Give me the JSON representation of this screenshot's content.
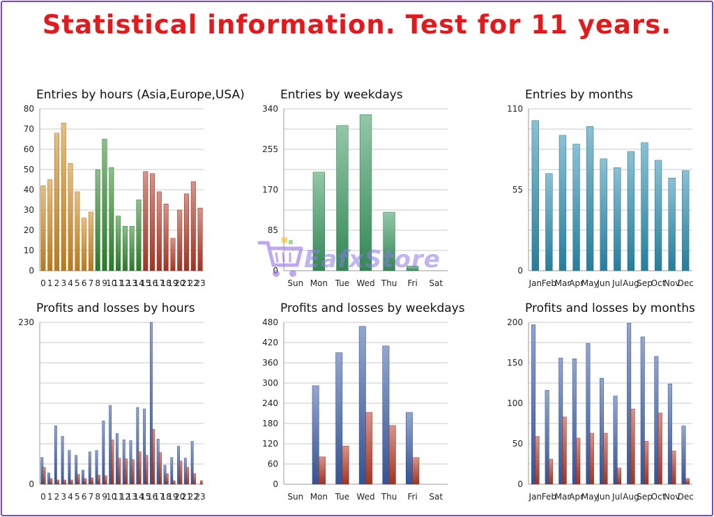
{
  "page": {
    "title": "Statistical information. Test for 11 years.",
    "title_color": "#e3191c"
  },
  "watermark": {
    "text": "EafxStore"
  },
  "chart_data": [
    {
      "id": "c1",
      "type": "bar",
      "title": "Entries by hours (Asia,Europe,USA)",
      "categories": [
        "0",
        "1",
        "2",
        "3",
        "4",
        "5",
        "6",
        "7",
        "8",
        "9",
        "10",
        "11",
        "12",
        "13",
        "14",
        "15",
        "16",
        "17",
        "18",
        "19",
        "20",
        "21",
        "22",
        "23"
      ],
      "series": [
        {
          "values": [
            42,
            45,
            68,
            73,
            53,
            39,
            26,
            29,
            50,
            65,
            51,
            27,
            22,
            22,
            35,
            49,
            48,
            39,
            33,
            16,
            30,
            38,
            44,
            31
          ]
        }
      ],
      "bar_colors": [
        "#d38a1c",
        "#d38a1c",
        "#d38a1c",
        "#d38a1c",
        "#d38a1c",
        "#d38a1c",
        "#d38a1c",
        "#d38a1c",
        "#2e8b2e",
        "#2e8b2e",
        "#2e8b2e",
        "#2e8b2e",
        "#2e8b2e",
        "#2e8b2e",
        "#2e8b2e",
        "#b83a26",
        "#b83a26",
        "#b83a26",
        "#b83a26",
        "#b83a26",
        "#b83a26",
        "#b83a26",
        "#b83a26",
        "#b83a26"
      ],
      "ylim": [
        0,
        80
      ],
      "yticks": [
        "0",
        "10",
        "20",
        "30",
        "40",
        "50",
        "60",
        "70",
        "80"
      ],
      "grid": true
    },
    {
      "id": "c2",
      "type": "bar",
      "title": "Entries by weekdays",
      "categories": [
        "Sun",
        "Mon",
        "Tue",
        "Wed",
        "Thu",
        "Fri",
        "Sat"
      ],
      "series": [
        {
          "values": [
            0,
            207,
            305,
            328,
            123,
            10,
            0
          ]
        }
      ],
      "bar_colors": [
        "#3a9a60"
      ],
      "ylim": [
        0,
        340
      ],
      "yticks": [
        "0",
        "85",
        "170",
        "255",
        "340"
      ],
      "grid": true
    },
    {
      "id": "c3",
      "type": "bar",
      "title": "Entries by months",
      "categories": [
        "Jan",
        "Feb",
        "Mar",
        "Apr",
        "May",
        "Jun",
        "Jul",
        "Aug",
        "Sep",
        "Oct",
        "Nov",
        "Dec"
      ],
      "series": [
        {
          "values": [
            102,
            66,
            92,
            86,
            98,
            76,
            70,
            81,
            87,
            75,
            63,
            68
          ]
        }
      ],
      "bar_colors": [
        "#2a8fb0"
      ],
      "ylim": [
        0,
        110
      ],
      "yticks": [
        "0",
        "55",
        "110"
      ],
      "grid": true
    },
    {
      "id": "c4",
      "type": "bar",
      "title": "Profits and losses by hours",
      "categories": [
        "0",
        "1",
        "2",
        "3",
        "4",
        "5",
        "6",
        "7",
        "8",
        "9",
        "10",
        "11",
        "12",
        "13",
        "14",
        "15",
        "16",
        "17",
        "18",
        "19",
        "20",
        "21",
        "22",
        "23"
      ],
      "series": [
        {
          "values": [
            38,
            16,
            83,
            68,
            48,
            41,
            20,
            46,
            48,
            90,
            112,
            72,
            63,
            62,
            109,
            107,
            230,
            64,
            27,
            38,
            54,
            37,
            61,
            0
          ]
        },
        {
          "values": [
            24,
            8,
            6,
            6,
            6,
            14,
            8,
            9,
            13,
            12,
            63,
            37,
            36,
            35,
            46,
            41,
            78,
            45,
            15,
            5,
            33,
            24,
            15,
            5
          ]
        }
      ],
      "series_colors": [
        "#3b5ea8",
        "#b83a26"
      ],
      "ylim": [
        0,
        230
      ],
      "yticks": [
        "0",
        "230"
      ],
      "grid": true
    },
    {
      "id": "c5",
      "type": "bar",
      "title": "Profits and losses by weekdays",
      "categories": [
        "Sun",
        "Mon",
        "Tue",
        "Wed",
        "Thu",
        "Fri",
        "Sat"
      ],
      "series": [
        {
          "values": [
            0,
            292,
            390,
            468,
            410,
            213,
            0
          ]
        },
        {
          "values": [
            0,
            81,
            113,
            213,
            174,
            79,
            0
          ]
        }
      ],
      "series_colors": [
        "#3b5ea8",
        "#b83a26"
      ],
      "ylim": [
        0,
        480
      ],
      "yticks": [
        "0",
        "60",
        "120",
        "180",
        "240",
        "300",
        "360",
        "420",
        "480"
      ],
      "grid": true
    },
    {
      "id": "c6",
      "type": "bar",
      "title": "Profits and losses by months",
      "categories": [
        "Jan",
        "Feb",
        "Mar",
        "Apr",
        "May",
        "Jun",
        "Jul",
        "Aug",
        "Sep",
        "Oct",
        "Nov",
        "Dec"
      ],
      "series": [
        {
          "values": [
            197,
            116,
            156,
            155,
            174,
            131,
            109,
            199,
            182,
            158,
            124,
            72
          ]
        },
        {
          "values": [
            59,
            31,
            83,
            57,
            63,
            63,
            20,
            93,
            53,
            88,
            41,
            7
          ]
        }
      ],
      "series_colors": [
        "#3b5ea8",
        "#b83a26"
      ],
      "ylim": [
        0,
        200
      ],
      "yticks": [
        "0",
        "50",
        "100",
        "150",
        "200"
      ],
      "grid": true
    }
  ]
}
